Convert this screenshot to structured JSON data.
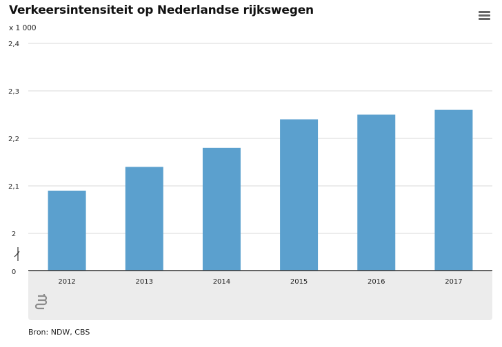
{
  "title": "Verkeersintensiteit op Nederlandse rijkswegen",
  "unit_label": "x 1 000",
  "source": "Bron: NDW, CBS",
  "menu_icon": "hamburger-menu-icon",
  "logo_icon": "cbs-logo-icon",
  "colors": {
    "bar": "#5ba0ce",
    "grid": "#d9d9d9",
    "axis": "#333333",
    "footer_band": "#ececec"
  },
  "chart_data": {
    "type": "bar",
    "categories": [
      "2012",
      "2013",
      "2014",
      "2015",
      "2016",
      "2017"
    ],
    "values": [
      2.09,
      2.14,
      2.18,
      2.24,
      2.25,
      2.26
    ],
    "ylim": [
      2.0,
      2.4
    ],
    "axis_break": true,
    "y_ticks": [
      {
        "value": 2.4,
        "label": "2,4"
      },
      {
        "value": 2.3,
        "label": "2,3"
      },
      {
        "value": 2.2,
        "label": "2,2"
      },
      {
        "value": 2.1,
        "label": "2,1"
      },
      {
        "value": 2.0,
        "label": "2"
      }
    ],
    "zero_label": "0",
    "xlabel": "",
    "ylabel": "",
    "grid": true
  }
}
